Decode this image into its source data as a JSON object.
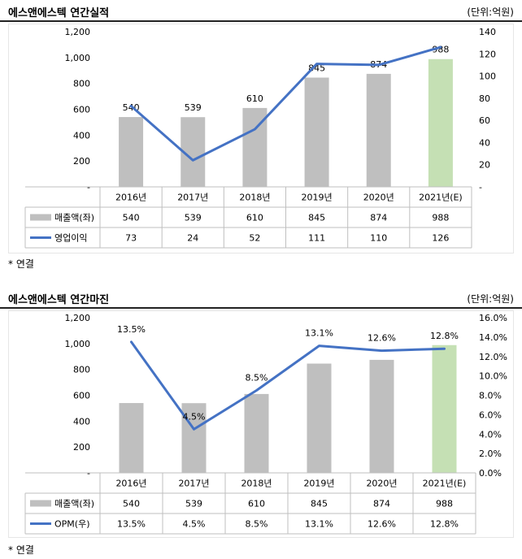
{
  "charts": [
    {
      "title": "에스앤에스텍 연간실적",
      "unit_label": "(단위:억원)",
      "footnote": "* 연결",
      "chart_data": {
        "type": "bar",
        "categories": [
          "2016년",
          "2017년",
          "2018년",
          "2019년",
          "2020년",
          "2021년(E)"
        ],
        "series": [
          {
            "name": "매출액(좌)",
            "type": "bar",
            "axis": "left",
            "values": [
              540,
              539,
              610,
              845,
              874,
              988
            ],
            "labels": [
              "540",
              "539",
              "610",
              "845",
              "874",
              "988"
            ],
            "colors": [
              "#bfbfbf",
              "#bfbfbf",
              "#bfbfbf",
              "#bfbfbf",
              "#bfbfbf",
              "#c5e0b4"
            ]
          },
          {
            "name": "영업이익",
            "type": "line",
            "axis": "right",
            "values": [
              73,
              24,
              52,
              111,
              110,
              126
            ],
            "labels": [
              "73",
              "24",
              "52",
              "111",
              "110",
              "126"
            ],
            "color": "#4472c4"
          }
        ],
        "bar_point_labels": [
          "540",
          "539",
          "610",
          "845",
          "874",
          "988"
        ],
        "line_point_labels": [],
        "left_axis": {
          "min": 0,
          "max": 1200,
          "ticks": [
            0,
            200,
            400,
            600,
            800,
            1000,
            1200
          ],
          "tick_labels": [
            "-",
            "200",
            "400",
            "600",
            "800",
            "1,000",
            "1,200"
          ]
        },
        "right_axis": {
          "min": 0,
          "max": 140,
          "ticks": [
            0,
            20,
            40,
            60,
            80,
            100,
            120,
            140
          ],
          "tick_labels": [
            "-",
            "20",
            "40",
            "60",
            "80",
            "100",
            "120",
            "140"
          ]
        },
        "grid": false,
        "legend": "data table"
      }
    },
    {
      "title": "에스앤에스텍 연간마진",
      "unit_label": "(단위:억원)",
      "footnote": "* 연결",
      "chart_data": {
        "type": "bar",
        "categories": [
          "2016년",
          "2017년",
          "2018년",
          "2019년",
          "2020년",
          "2021년(E)"
        ],
        "series": [
          {
            "name": "매출액(좌)",
            "type": "bar",
            "axis": "left",
            "values": [
              540,
              539,
              610,
              845,
              874,
              988
            ],
            "labels": [
              "540",
              "539",
              "610",
              "845",
              "874",
              "988"
            ],
            "colors": [
              "#bfbfbf",
              "#bfbfbf",
              "#bfbfbf",
              "#bfbfbf",
              "#bfbfbf",
              "#c5e0b4"
            ]
          },
          {
            "name": "OPM(우)",
            "type": "line",
            "axis": "right",
            "values": [
              13.5,
              4.5,
              8.5,
              13.1,
              12.6,
              12.8
            ],
            "labels": [
              "13.5%",
              "4.5%",
              "8.5%",
              "13.1%",
              "12.6%",
              "12.8%"
            ],
            "color": "#4472c4"
          }
        ],
        "bar_point_labels": [],
        "line_point_labels": [
          "13.5%",
          "4.5%",
          "8.5%",
          "13.1%",
          "12.6%",
          "12.8%"
        ],
        "left_axis": {
          "min": 0,
          "max": 1200,
          "ticks": [
            0,
            200,
            400,
            600,
            800,
            1000,
            1200
          ],
          "tick_labels": [
            "-",
            "200",
            "400",
            "600",
            "800",
            "1,000",
            "1,200"
          ]
        },
        "right_axis": {
          "min": 0,
          "max": 16,
          "ticks": [
            0,
            2,
            4,
            6,
            8,
            10,
            12,
            14,
            16
          ],
          "tick_labels": [
            "0.0%",
            "2.0%",
            "4.0%",
            "6.0%",
            "8.0%",
            "10.0%",
            "12.0%",
            "14.0%",
            "16.0%"
          ]
        },
        "grid": false,
        "legend": "data table"
      }
    }
  ]
}
